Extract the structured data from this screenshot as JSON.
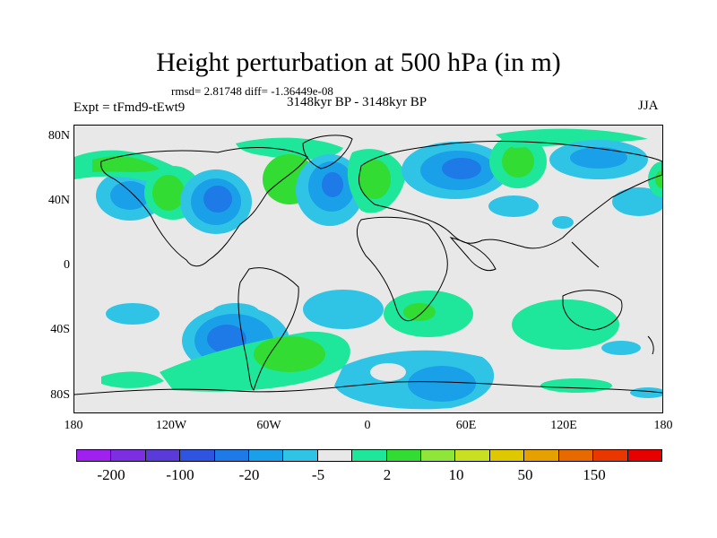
{
  "title": "Height perturbation at 500 hPa (in m)",
  "stats": "rmsd= 2.81748 diff= -1.36449e-08",
  "period": "3148kyr BP - 3148kyr BP",
  "experiment": "Expt = tFmd9-tEwt9",
  "season": "JJA",
  "axes": {
    "y_ticks": [
      "80N",
      "40N",
      "0",
      "40S",
      "80S"
    ],
    "x_ticks": [
      "180",
      "120W",
      "60W",
      "0",
      "60E",
      "120E",
      "180"
    ]
  },
  "colorbar": {
    "colors": [
      "#a020f0",
      "#7b2fe0",
      "#5a3ad8",
      "#2f55e0",
      "#1e7ae6",
      "#1aa0e8",
      "#2fc4e6",
      "#e8e8e8",
      "#1ee69a",
      "#33dc33",
      "#8fe63a",
      "#c8e020",
      "#e0c800",
      "#e6a000",
      "#e66a00",
      "#e83800",
      "#e60000"
    ],
    "labels": [
      "-200",
      "-100",
      "-20",
      "-5",
      "2",
      "10",
      "50",
      "150"
    ]
  },
  "palette": {
    "land_outline": "#000000",
    "background": "#e8e8e8",
    "light_blue": "#2fc4e6",
    "mid_blue": "#1aa0e8",
    "blue": "#1e7ae6",
    "teal": "#1ee69a",
    "green": "#33dc33"
  }
}
